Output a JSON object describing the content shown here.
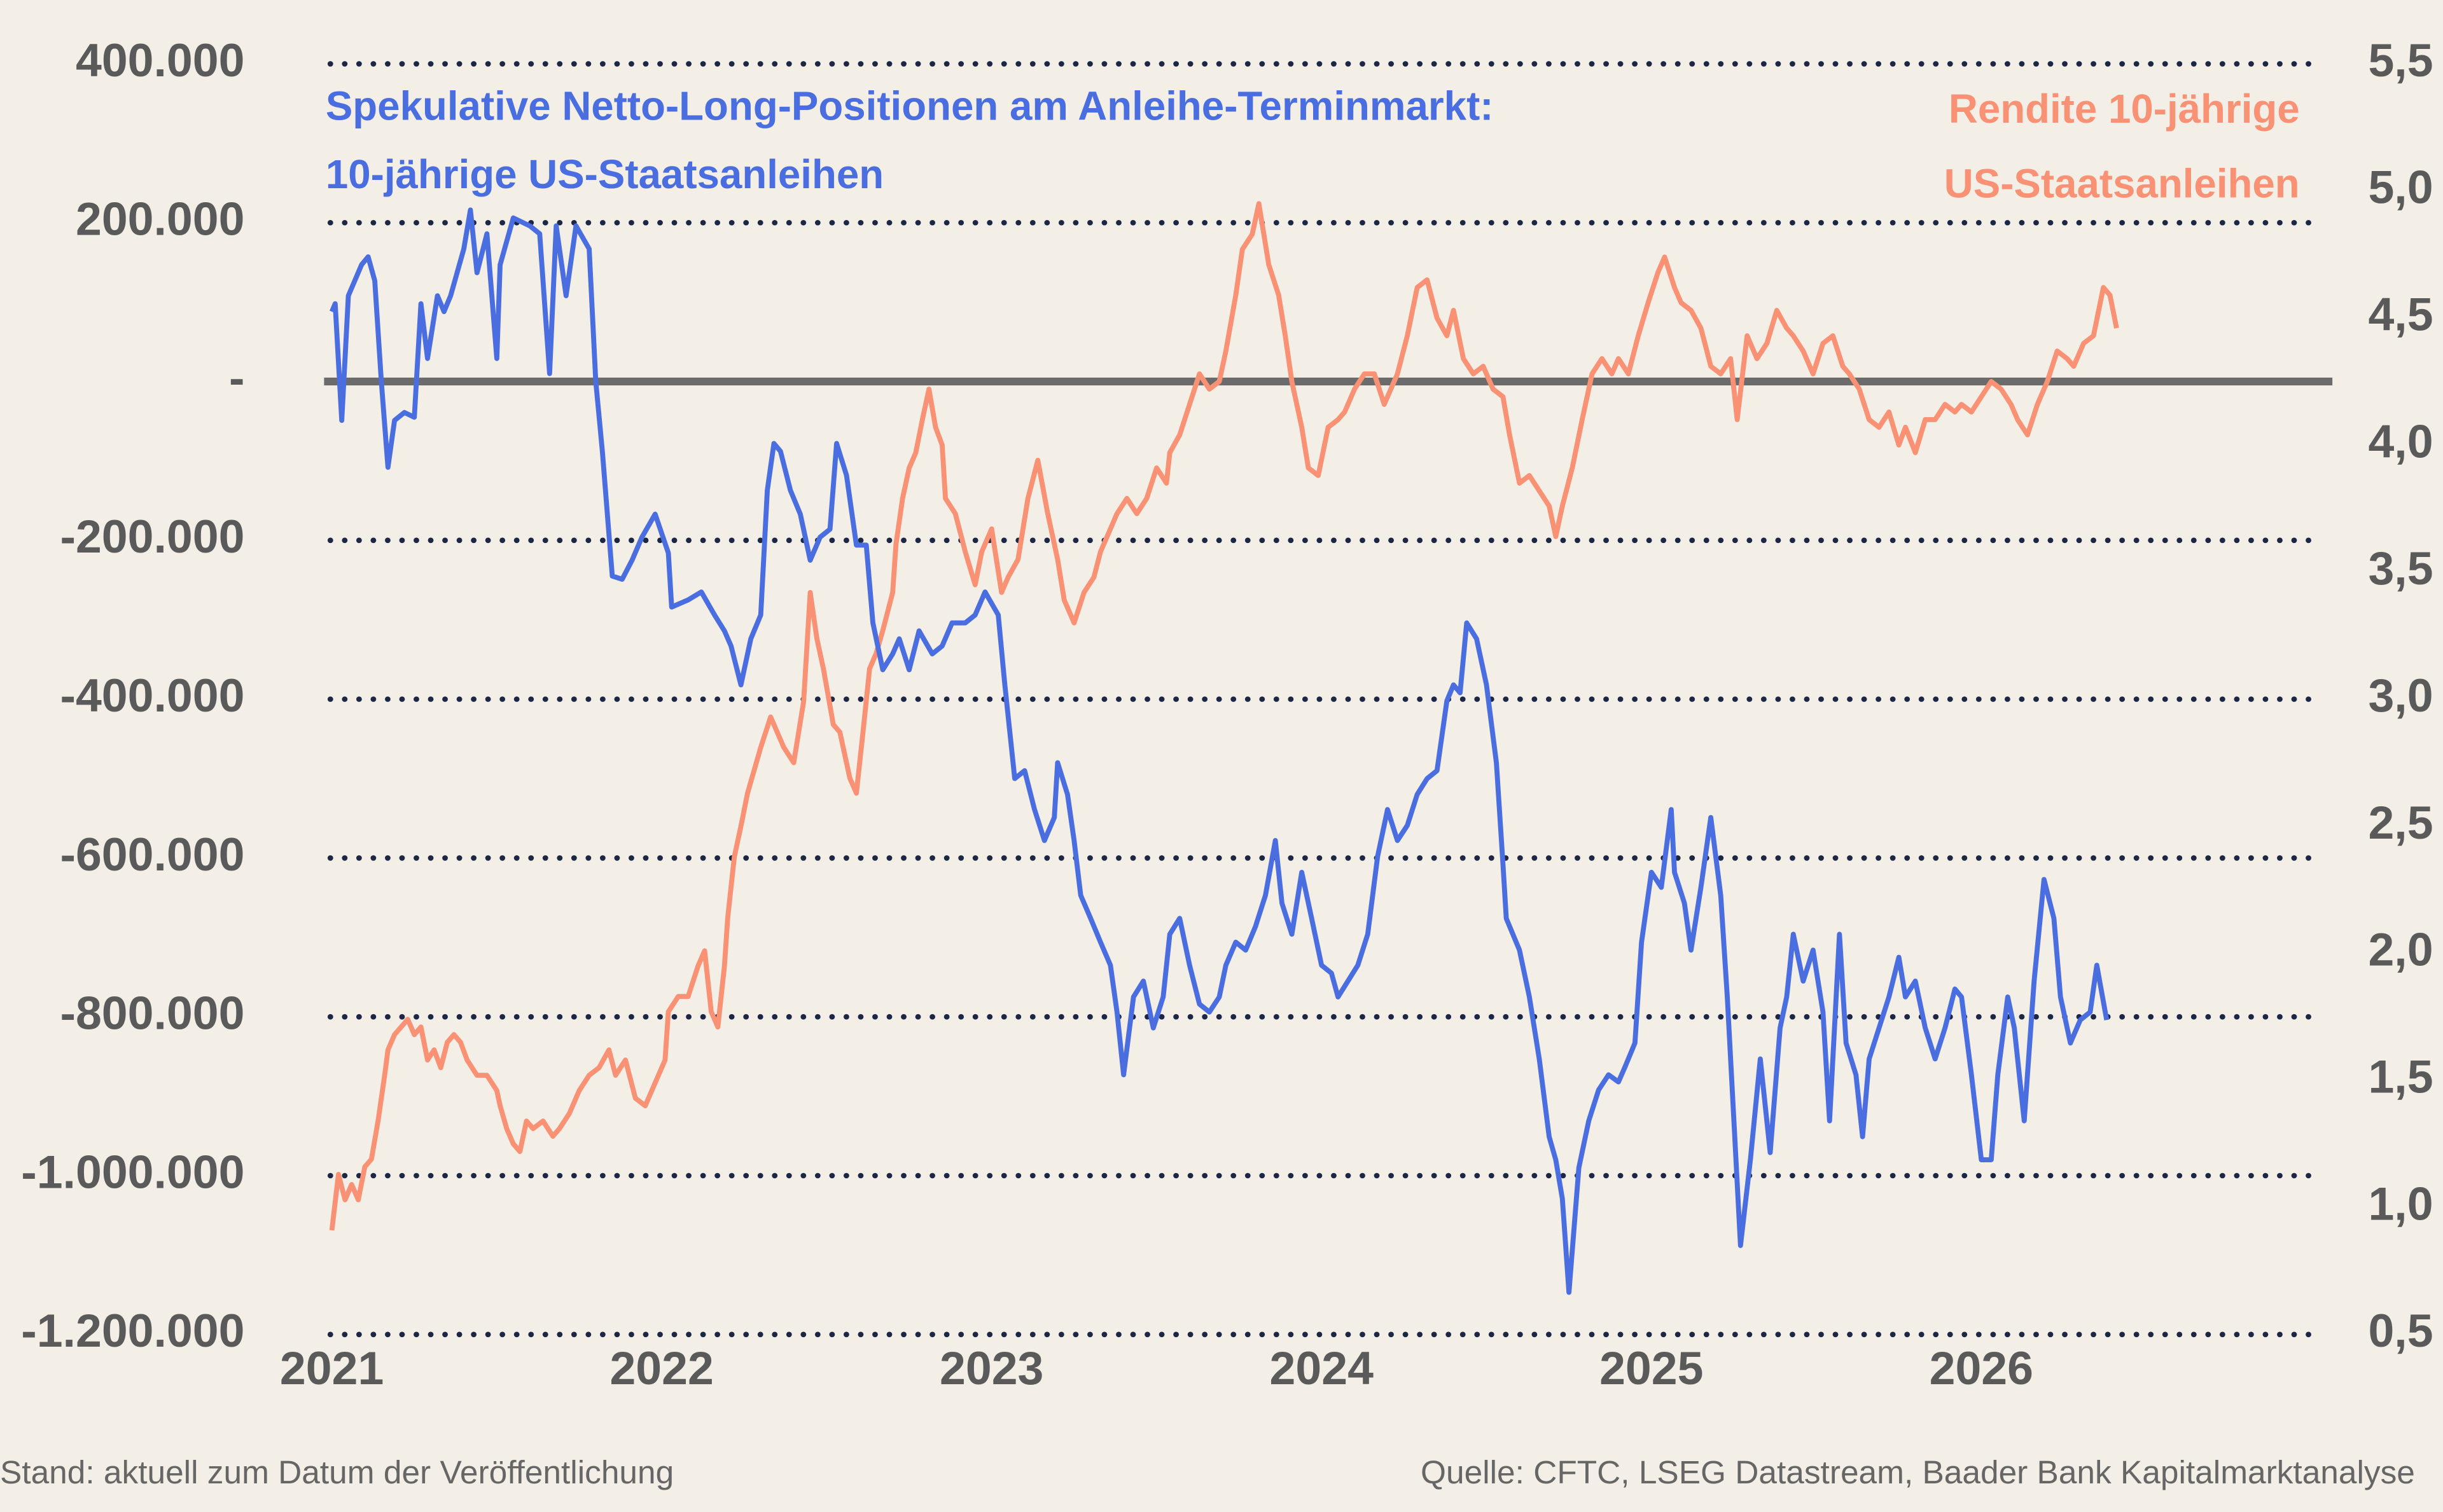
{
  "chart_data": {
    "type": "line",
    "series": [
      {
        "name": [
          "Spekulative Netto-Long-Positionen am Anleihe-Terminmarkt:",
          "10-jährige US-Staatsanleihen"
        ],
        "color": "#4a6ee0",
        "x": [
          2021.0,
          2021.01,
          2021.03,
          2021.05,
          2021.09,
          2021.11,
          2021.13,
          2021.15,
          2021.17,
          2021.19,
          2021.22,
          2021.25,
          2021.27,
          2021.29,
          2021.32,
          2021.34,
          2021.36,
          2021.4,
          2021.42,
          2021.44,
          2021.47,
          2021.5,
          2021.51,
          2021.55,
          2021.6,
          2021.63,
          2021.66,
          2021.68,
          2021.71,
          2021.74,
          2021.78,
          2021.8,
          2021.82,
          2021.85,
          2021.88,
          2021.91,
          2021.94,
          2021.98,
          2022.02,
          2022.03,
          2022.08,
          2022.12,
          2022.16,
          2022.19,
          2022.21,
          2022.24,
          2022.27,
          2022.3,
          2022.32,
          2022.34,
          2022.36,
          2022.39,
          2022.42,
          2022.45,
          2022.48,
          2022.51,
          2022.53,
          2022.56,
          2022.59,
          2022.62,
          2022.64,
          2022.67,
          2022.7,
          2022.72,
          2022.75,
          2022.78,
          2022.82,
          2022.85,
          2022.88,
          2022.92,
          2022.95,
          2022.98,
          2023.02,
          2023.04,
          2023.07,
          2023.1,
          2023.13,
          2023.16,
          2023.19,
          2023.2,
          2023.23,
          2023.25,
          2023.27,
          2023.3,
          2023.33,
          2023.36,
          2023.38,
          2023.4,
          2023.43,
          2023.46,
          2023.49,
          2023.52,
          2023.54,
          2023.57,
          2023.6,
          2023.63,
          2023.66,
          2023.69,
          2023.71,
          2023.74,
          2023.77,
          2023.8,
          2023.83,
          2023.86,
          2023.88,
          2023.91,
          2023.94,
          2023.97,
          2024.0,
          2024.03,
          2024.05,
          2024.08,
          2024.11,
          2024.14,
          2024.17,
          2024.2,
          2024.23,
          2024.26,
          2024.29,
          2024.32,
          2024.35,
          2024.38,
          2024.4,
          2024.42,
          2024.44,
          2024.47,
          2024.5,
          2024.53,
          2024.55,
          2024.56,
          2024.6,
          2024.63,
          2024.66,
          2024.69,
          2024.71,
          2024.73,
          2024.75,
          2024.78,
          2024.81,
          2024.84,
          2024.87,
          2024.9,
          2024.92,
          2024.95,
          2024.97,
          2025.0,
          2025.03,
          2025.06,
          2025.07,
          2025.1,
          2025.12,
          2025.15,
          2025.18,
          2025.21,
          2025.23,
          2025.25,
          2025.27,
          2025.3,
          2025.33,
          2025.36,
          2025.39,
          2025.41,
          2025.43,
          2025.46,
          2025.49,
          2025.52,
          2025.54,
          2025.57,
          2025.59,
          2025.62,
          2025.64,
          2025.66,
          2025.69,
          2025.72,
          2025.75,
          2025.77,
          2025.8,
          2025.83,
          2025.86,
          2025.89,
          2025.92,
          2025.94,
          2025.97,
          2026.0,
          2026.03,
          2026.05,
          2026.08,
          2026.1,
          2026.13,
          2026.16,
          2026.19,
          2026.22,
          2026.24,
          2026.27,
          2026.3,
          2026.33,
          2026.35,
          2026.38
        ],
        "values": [
          88000,
          98000,
          -49000,
          108000,
          147000,
          157000,
          127000,
          0,
          -108000,
          -49000,
          -39000,
          -45000,
          98000,
          29000,
          108000,
          88000,
          108000,
          167000,
          216000,
          137000,
          186000,
          29000,
          147000,
          206000,
          196000,
          186000,
          10000,
          196000,
          108000,
          196000,
          167000,
          0,
          -88000,
          -245000,
          -249000,
          -225000,
          -196000,
          -167000,
          -216000,
          -284000,
          -275000,
          -265000,
          -294000,
          -314000,
          -333000,
          -382000,
          -324000,
          -294000,
          -137000,
          -78000,
          -88000,
          -137000,
          -167000,
          -225000,
          -196000,
          -186000,
          -78000,
          -118000,
          -206000,
          -206000,
          -304000,
          -363000,
          -343000,
          -324000,
          -363000,
          -314000,
          -343000,
          -333000,
          -304000,
          -304000,
          -294000,
          -265000,
          -294000,
          -382000,
          -500000,
          -490000,
          -539000,
          -578000,
          -549000,
          -480000,
          -520000,
          -578000,
          -647000,
          -676000,
          -706000,
          -735000,
          -794000,
          -873000,
          -775000,
          -755000,
          -814000,
          -775000,
          -696000,
          -676000,
          -735000,
          -784000,
          -794000,
          -775000,
          -735000,
          -706000,
          -716000,
          -686000,
          -647000,
          -578000,
          -657000,
          -696000,
          -618000,
          -676000,
          -735000,
          -745000,
          -775000,
          -755000,
          -735000,
          -696000,
          -598000,
          -539000,
          -578000,
          -559000,
          -520000,
          -500000,
          -490000,
          -402000,
          -382000,
          -392000,
          -304000,
          -324000,
          -382000,
          -480000,
          -608000,
          -676000,
          -716000,
          -775000,
          -853000,
          -951000,
          -980000,
          -1029000,
          -1147000,
          -990000,
          -931000,
          -892000,
          -873000,
          -882000,
          -863000,
          -833000,
          -706000,
          -618000,
          -637000,
          -539000,
          -618000,
          -657000,
          -716000,
          -637000,
          -549000,
          -647000,
          -775000,
          -931000,
          -1088000,
          -980000,
          -853000,
          -971000,
          -814000,
          -775000,
          -696000,
          -755000,
          -716000,
          -794000,
          -931000,
          -696000,
          -833000,
          -873000,
          -951000,
          -853000,
          -814000,
          -775000,
          -725000,
          -775000,
          -755000,
          -814000,
          -853000,
          -814000,
          -765000,
          -775000,
          -873000,
          -980000,
          -980000,
          -873000,
          -775000,
          -814000,
          -931000,
          -755000,
          -627000,
          -676000,
          -775000,
          -833000,
          -804000,
          -794000,
          -735000,
          -804000
        ]
      },
      {
        "name": [
          "Rendite 10-jährige",
          "US-Staatsanleihen"
        ],
        "color": "#f99174",
        "axis": "y2",
        "x": [
          2021.0,
          2021.02,
          2021.04,
          2021.06,
          2021.08,
          2021.1,
          2021.12,
          2021.14,
          2021.16,
          2021.17,
          2021.19,
          2021.21,
          2021.23,
          2021.25,
          2021.27,
          2021.29,
          2021.31,
          2021.33,
          2021.35,
          2021.37,
          2021.39,
          2021.41,
          2021.44,
          2021.47,
          2021.5,
          2021.51,
          2021.53,
          2021.55,
          2021.57,
          2021.59,
          2021.61,
          2021.64,
          2021.67,
          2021.69,
          2021.72,
          2021.75,
          2021.78,
          2021.81,
          2021.84,
          2021.86,
          2021.89,
          2021.92,
          2021.95,
          2021.98,
          2022.01,
          2022.02,
          2022.05,
          2022.08,
          2022.11,
          2022.13,
          2022.15,
          2022.17,
          2022.19,
          2022.2,
          2022.22,
          2022.24,
          2022.26,
          2022.28,
          2022.3,
          2022.33,
          2022.35,
          2022.37,
          2022.4,
          2022.43,
          2022.45,
          2022.47,
          2022.49,
          2022.52,
          2022.54,
          2022.57,
          2022.59,
          2022.61,
          2022.63,
          2022.65,
          2022.67,
          2022.7,
          2022.71,
          2022.73,
          2022.75,
          2022.77,
          2022.79,
          2022.81,
          2022.83,
          2022.85,
          2022.86,
          2022.89,
          2022.92,
          2022.95,
          2022.97,
          2023.0,
          2023.03,
          2023.05,
          2023.08,
          2023.11,
          2023.14,
          2023.17,
          2023.2,
          2023.22,
          2023.25,
          2023.28,
          2023.31,
          2023.33,
          2023.36,
          2023.38,
          2023.41,
          2023.44,
          2023.47,
          2023.5,
          2023.53,
          2023.54,
          2023.57,
          2023.6,
          2023.63,
          2023.66,
          2023.69,
          2023.71,
          2023.74,
          2023.76,
          2023.79,
          2023.81,
          2023.84,
          2023.87,
          2023.89,
          2023.91,
          2023.94,
          2023.96,
          2023.99,
          2024.02,
          2024.05,
          2024.07,
          2024.1,
          2024.13,
          2024.16,
          2024.19,
          2024.21,
          2024.23,
          2024.26,
          2024.29,
          2024.32,
          2024.35,
          2024.38,
          2024.4,
          2024.43,
          2024.46,
          2024.49,
          2024.52,
          2024.55,
          2024.57,
          2024.6,
          2024.63,
          2024.66,
          2024.69,
          2024.71,
          2024.73,
          2024.76,
          2024.79,
          2024.82,
          2024.85,
          2024.88,
          2024.9,
          2024.93,
          2024.96,
          2024.99,
          2025.02,
          2025.04,
          2025.07,
          2025.09,
          2025.12,
          2025.15,
          2025.18,
          2025.21,
          2025.24,
          2025.26,
          2025.29,
          2025.32,
          2025.35,
          2025.38,
          2025.41,
          2025.43,
          2025.46,
          2025.49,
          2025.52,
          2025.55,
          2025.58,
          2025.6,
          2025.63,
          2025.66,
          2025.69,
          2025.72,
          2025.75,
          2025.77,
          2025.8,
          2025.83,
          2025.86,
          2025.89,
          2025.92,
          2025.94,
          2025.97,
          2026.0,
          2026.03,
          2026.06,
          2026.09,
          2026.11,
          2026.14,
          2026.17,
          2026.2,
          2026.23,
          2026.26,
          2026.28,
          2026.31,
          2026.34,
          2026.37,
          2026.39,
          2026.41
        ],
        "values": [
          0.91,
          1.13,
          1.03,
          1.09,
          1.03,
          1.16,
          1.19,
          1.34,
          1.52,
          1.62,
          1.68,
          1.71,
          1.74,
          1.68,
          1.71,
          1.58,
          1.62,
          1.55,
          1.65,
          1.68,
          1.65,
          1.58,
          1.52,
          1.52,
          1.46,
          1.4,
          1.31,
          1.25,
          1.22,
          1.34,
          1.31,
          1.34,
          1.28,
          1.31,
          1.37,
          1.46,
          1.52,
          1.55,
          1.62,
          1.52,
          1.58,
          1.43,
          1.4,
          1.49,
          1.58,
          1.77,
          1.83,
          1.83,
          1.95,
          2.01,
          1.77,
          1.71,
          1.95,
          2.14,
          2.38,
          2.5,
          2.63,
          2.72,
          2.81,
          2.93,
          2.87,
          2.81,
          2.75,
          2.99,
          3.42,
          3.24,
          3.12,
          2.9,
          2.87,
          2.69,
          2.63,
          2.87,
          3.12,
          3.18,
          3.27,
          3.42,
          3.61,
          3.79,
          3.91,
          3.97,
          4.1,
          4.22,
          4.07,
          4.0,
          3.79,
          3.73,
          3.58,
          3.45,
          3.58,
          3.67,
          3.42,
          3.48,
          3.55,
          3.79,
          3.94,
          3.73,
          3.55,
          3.39,
          3.3,
          3.42,
          3.48,
          3.58,
          3.67,
          3.73,
          3.79,
          3.73,
          3.79,
          3.91,
          3.85,
          3.97,
          4.04,
          4.16,
          4.28,
          4.22,
          4.25,
          4.37,
          4.59,
          4.77,
          4.83,
          4.95,
          4.71,
          4.59,
          4.43,
          4.25,
          4.07,
          3.91,
          3.88,
          4.07,
          4.1,
          4.13,
          4.22,
          4.28,
          4.28,
          4.16,
          4.22,
          4.28,
          4.43,
          4.62,
          4.65,
          4.5,
          4.43,
          4.53,
          4.34,
          4.28,
          4.31,
          4.22,
          4.19,
          4.04,
          3.85,
          3.88,
          3.82,
          3.76,
          3.64,
          3.76,
          3.91,
          4.1,
          4.28,
          4.34,
          4.28,
          4.34,
          4.28,
          4.43,
          4.56,
          4.68,
          4.74,
          4.62,
          4.56,
          4.53,
          4.46,
          4.31,
          4.28,
          4.34,
          4.1,
          4.43,
          4.34,
          4.4,
          4.53,
          4.46,
          4.43,
          4.37,
          4.28,
          4.4,
          4.43,
          4.31,
          4.28,
          4.22,
          4.1,
          4.07,
          4.13,
          4.0,
          4.07,
          3.97,
          4.1,
          4.1,
          4.16,
          4.13,
          4.16,
          4.13,
          4.19,
          4.25,
          4.22,
          4.16,
          4.1,
          4.04,
          4.16,
          4.25,
          4.37,
          4.34,
          4.31,
          4.4,
          4.43,
          4.62,
          4.59,
          4.46
        ]
      }
    ],
    "xlim": [
      2021,
      2027.05
    ],
    "xticks": [
      2021,
      2022,
      2023,
      2024,
      2025,
      2026
    ],
    "ylim": [
      -1200000,
      400000
    ],
    "yticks": [
      {
        "value": -1200000,
        "label": "-1.200.000"
      },
      {
        "value": -1000000,
        "label": "-1.000.000"
      },
      {
        "value": -800000,
        "label": "-800.000"
      },
      {
        "value": -600000,
        "label": "-600.000"
      },
      {
        "value": -400000,
        "label": "-400.000"
      },
      {
        "value": -200000,
        "label": "-200.000"
      },
      {
        "value": 0,
        "label": "-"
      },
      {
        "value": 200000,
        "label": "200.000"
      },
      {
        "value": 400000,
        "label": "400.000"
      }
    ],
    "y2lim": [
      0.5,
      5.5
    ],
    "y2ticks": [
      {
        "value": 0.5,
        "label": "0,5"
      },
      {
        "value": 1.0,
        "label": "1,0"
      },
      {
        "value": 1.5,
        "label": "1,5"
      },
      {
        "value": 2.0,
        "label": "2,0"
      },
      {
        "value": 2.5,
        "label": "2,5"
      },
      {
        "value": 3.0,
        "label": "3,0"
      },
      {
        "value": 3.5,
        "label": "3,5"
      },
      {
        "value": 4.0,
        "label": "4,0"
      },
      {
        "value": 4.5,
        "label": "4,5"
      },
      {
        "value": 5.0,
        "label": "5,0"
      },
      {
        "value": 5.5,
        "label": "5,5"
      }
    ],
    "grid": true,
    "note": "Stand: aktuell zum Datum der Veröffentlichung",
    "source": "Quelle: CFTC, LSEG Datastream, Baader Bank Kapitalmarktanalyse"
  }
}
